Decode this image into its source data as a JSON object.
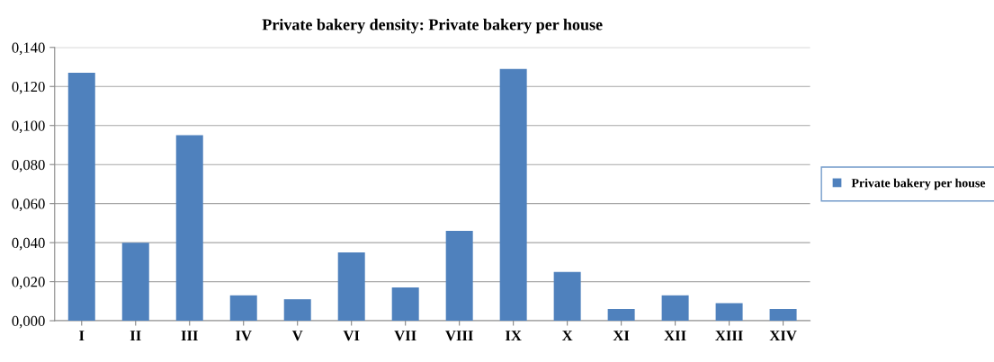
{
  "chart_data": {
    "type": "bar",
    "title": "Private bakery density: Private bakery per house",
    "categories": [
      "I",
      "II",
      "III",
      "IV",
      "V",
      "VI",
      "VII",
      "VIII",
      "IX",
      "X",
      "XI",
      "XII",
      "XIII",
      "XIV"
    ],
    "series": [
      {
        "name": "Private bakery per house",
        "color": "#4f81bd",
        "values": [
          0.127,
          0.04,
          0.095,
          0.013,
          0.011,
          0.035,
          0.017,
          0.046,
          0.129,
          0.025,
          0.006,
          0.013,
          0.009,
          0.006
        ]
      }
    ],
    "ylim": [
      0,
      0.14
    ],
    "yticks": [
      {
        "value": 0,
        "label": "0,000"
      },
      {
        "value": 0.02,
        "label": "0,020"
      },
      {
        "value": 0.04,
        "label": "0,040"
      },
      {
        "value": 0.06,
        "label": "0,060"
      },
      {
        "value": 0.08,
        "label": "0,080"
      },
      {
        "value": 0.1,
        "label": "0,100"
      },
      {
        "value": 0.12,
        "label": "0,120"
      },
      {
        "value": 0.14,
        "label": "0,140"
      }
    ],
    "grid": "y",
    "legend": "right"
  }
}
